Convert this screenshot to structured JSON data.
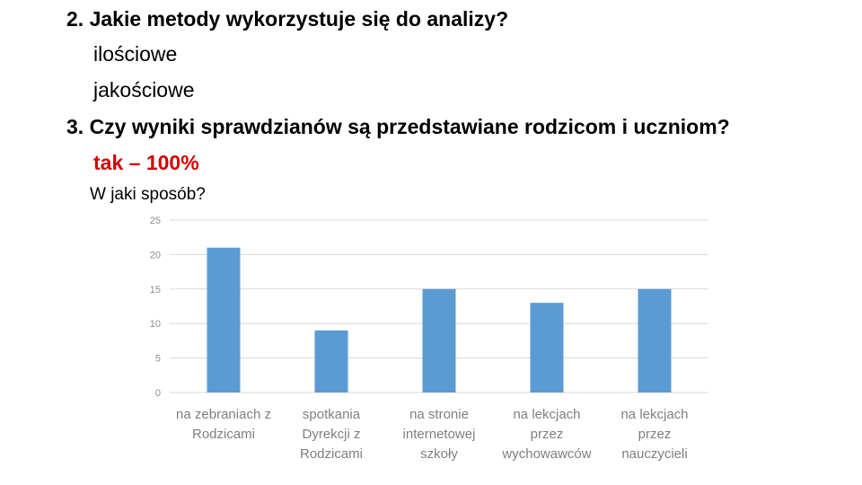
{
  "q2": {
    "question": "2. Jakie metody wykorzystuje się do analizy?",
    "answers": [
      "ilościowe",
      "jakościowe"
    ]
  },
  "q3": {
    "question": "3. Czy wyniki sprawdzianów są przedstawiane rodzicom i uczniom?",
    "answer": "tak – 100%",
    "followup": "W jaki sposób?"
  },
  "colors": {
    "bar": "#5b9bd5",
    "answer_highlight": "#d40000"
  },
  "chart_data": {
    "type": "bar",
    "categories": [
      [
        "na zebraniach z",
        "Rodzicami"
      ],
      [
        "spotkania",
        "Dyrekcji z",
        "Rodzicami"
      ],
      [
        "na stronie",
        "internetowej",
        "szkoły"
      ],
      [
        "na lekcjach",
        "przez",
        "wychowawców"
      ],
      [
        "na lekcjach",
        "przez",
        "nauczycieli"
      ]
    ],
    "values": [
      21,
      9,
      15,
      13,
      15
    ],
    "ylim": [
      0,
      25
    ],
    "yticks": [
      0,
      5,
      10,
      15,
      20,
      25
    ],
    "grid": true,
    "title": "",
    "xlabel": "",
    "ylabel": ""
  }
}
